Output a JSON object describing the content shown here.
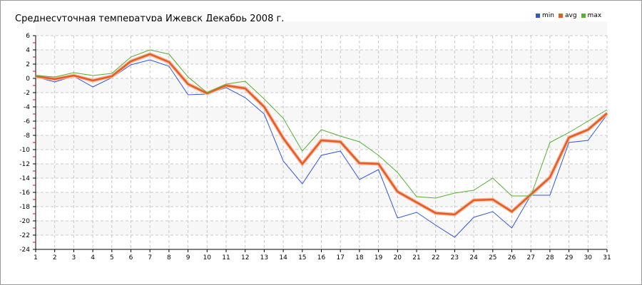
{
  "chart_data": {
    "type": "line",
    "title": "Среднесуточная температура Ижевск  Декабрь 2008 г.",
    "xlabel": "",
    "ylabel": "",
    "x": [
      1,
      2,
      3,
      4,
      5,
      6,
      7,
      8,
      9,
      10,
      11,
      12,
      13,
      14,
      15,
      16,
      17,
      18,
      19,
      20,
      21,
      22,
      23,
      24,
      25,
      26,
      27,
      28,
      29,
      30,
      31
    ],
    "xlim": [
      1,
      31
    ],
    "ylim": [
      -24,
      6
    ],
    "yticks": [
      6,
      4,
      2,
      0,
      -2,
      -4,
      -6,
      -8,
      -10,
      -12,
      -14,
      -16,
      -18,
      -20,
      -22,
      -24
    ],
    "grid": true,
    "legend_position": "top-right",
    "series": [
      {
        "name": "min",
        "color": "#3355dd",
        "values": [
          0.2,
          -0.5,
          0.3,
          -1.2,
          0.1,
          1.9,
          2.6,
          1.7,
          -2.3,
          -2.2,
          -1.3,
          -2.7,
          -5.0,
          -11.6,
          -14.8,
          -10.8,
          -10.2,
          -14.2,
          -12.8,
          -19.6,
          -18.8,
          -20.6,
          -22.3,
          -19.5,
          -18.7,
          -21.0,
          -16.4,
          -16.4,
          -9.0,
          -8.7,
          -5.1
        ]
      },
      {
        "name": "avg",
        "color": "#e85c20",
        "values": [
          0.3,
          -0.1,
          0.4,
          -0.3,
          0.3,
          2.4,
          3.4,
          2.3,
          -0.8,
          -2.1,
          -1.0,
          -1.4,
          -4.0,
          -8.4,
          -12.0,
          -8.7,
          -8.9,
          -11.9,
          -12.0,
          -15.9,
          -17.4,
          -18.9,
          -19.1,
          -17.1,
          -17.0,
          -18.7,
          -16.3,
          -13.9,
          -8.3,
          -7.2,
          -4.9
        ]
      },
      {
        "name": "max",
        "color": "#55b030",
        "values": [
          0.4,
          0.2,
          0.8,
          0.4,
          0.7,
          3.0,
          4.0,
          3.4,
          0.2,
          -2.0,
          -0.8,
          -0.4,
          -2.9,
          -5.6,
          -10.2,
          -7.2,
          -8.1,
          -8.9,
          -10.8,
          -13.2,
          -16.6,
          -16.8,
          -16.1,
          -15.7,
          -14.0,
          -16.5,
          -16.5,
          -9.0,
          -7.6,
          -6.0,
          -4.4
        ]
      }
    ]
  }
}
